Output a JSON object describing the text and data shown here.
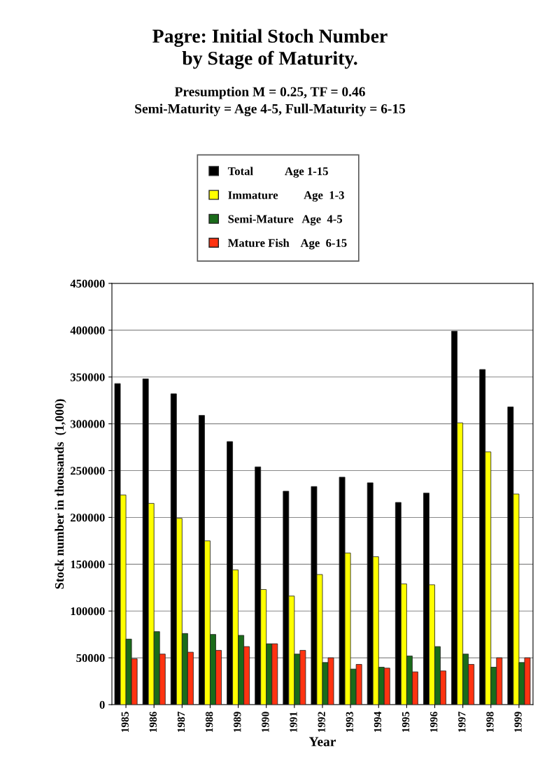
{
  "chart_data": {
    "type": "bar",
    "title": "Pagre: Initial Stoch Number\nby Stage of Maturity.",
    "subtitle": "Presumption M = 0.25, TF = 0.46\nSemi-Maturity = Age 4-5, Full-Maturity = 6-15",
    "xlabel": "Year",
    "ylabel": "Stock number in thousands  (1,000)",
    "categories": [
      "1985",
      "1986",
      "1987",
      "1988",
      "1989",
      "1990",
      "1991",
      "1992",
      "1993",
      "1994",
      "1995",
      "1996",
      "1997",
      "1998",
      "1999"
    ],
    "series": [
      {
        "name": "Total           Age 1-15",
        "color": "#000000",
        "values": [
          343000,
          348000,
          332000,
          309000,
          281000,
          254000,
          228000,
          233000,
          243000,
          237000,
          216000,
          226000,
          399000,
          358000,
          318000
        ]
      },
      {
        "name": "Immature         Age  1-3",
        "color": "#ffff00",
        "values": [
          224000,
          215000,
          199000,
          175000,
          144000,
          123000,
          116000,
          139000,
          162000,
          158000,
          129000,
          128000,
          301000,
          270000,
          225000
        ]
      },
      {
        "name": "Semi-Mature   Age  4-5",
        "color": "#1a6b1a",
        "values": [
          70000,
          78000,
          76000,
          75000,
          74000,
          65000,
          54000,
          45000,
          38000,
          40000,
          52000,
          62000,
          54000,
          40000,
          45000
        ]
      },
      {
        "name": "Mature Fish    Age  6-15",
        "color": "#ff3311",
        "values": [
          49000,
          54000,
          56000,
          58000,
          62000,
          65000,
          58000,
          50000,
          43000,
          39000,
          35000,
          36000,
          43000,
          50000,
          50000
        ]
      }
    ],
    "ylim": [
      0,
      450000
    ],
    "yticks": [
      0,
      50000,
      100000,
      150000,
      200000,
      250000,
      300000,
      350000,
      400000,
      450000
    ],
    "grid": "y",
    "legend": "top"
  }
}
